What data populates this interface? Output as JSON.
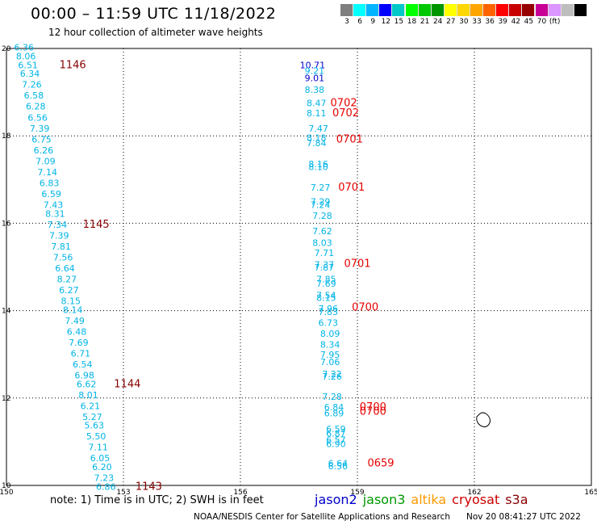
{
  "header": {
    "title": "00:00 – 11:59 UTC 11/18/2022",
    "subtitle": "12 hour collection of altimeter wave heights"
  },
  "colorbar": {
    "colors": [
      "#7f7f7f",
      "#00ffff",
      "#00b4ff",
      "#0000ff",
      "#00c8c8",
      "#00ff00",
      "#00c800",
      "#009600",
      "#ffff00",
      "#ffd700",
      "#ffa500",
      "#ff6400",
      "#ff0000",
      "#c80000",
      "#960000",
      "#c80096",
      "#dc96ff",
      "#bebebe",
      "#000000"
    ],
    "labels": [
      "3",
      "6",
      "9",
      "12",
      "15",
      "18",
      "21",
      "24",
      "27",
      "30",
      "33",
      "36",
      "39",
      "42",
      "45",
      "70",
      "(ft)"
    ]
  },
  "footer": {
    "note": "note: 1) Time is in UTC; 2) SWH is in feet",
    "credit": "NOAA/NESDIS Center for Satellite Applications and Research",
    "timestamp": "Nov 20 08:41:27 UTC 2022",
    "satellites": [
      {
        "name": "jason2",
        "color": "#0000cc"
      },
      {
        "name": "jason3",
        "color": "#009900"
      },
      {
        "name": "altika",
        "color": "#ff9900"
      },
      {
        "name": "cryosat",
        "color": "#cc0000"
      },
      {
        "name": "s3a",
        "color": "#880000"
      }
    ]
  },
  "chart_data": {
    "type": "scatter",
    "xlim": [
      150,
      165
    ],
    "ylim": [
      10,
      20
    ],
    "x_ticks": [
      150,
      153,
      156,
      159,
      162,
      165
    ],
    "y_ticks": [
      10,
      12,
      14,
      16,
      18,
      20
    ],
    "y_tick_labels": [
      "10",
      "12",
      "14",
      "16",
      "18",
      "20"
    ],
    "grid": true,
    "tracks": [
      {
        "points": [
          {
            "lon": 150.45,
            "lat": 19.95,
            "v": "6.36",
            "c": "#00b4e6"
          },
          {
            "lon": 150.5,
            "lat": 19.75,
            "v": "8.06",
            "c": "#00b4e6"
          },
          {
            "lon": 150.55,
            "lat": 19.55,
            "v": "6.51",
            "c": "#00b4e6"
          },
          {
            "lon": 150.6,
            "lat": 19.35,
            "v": "6.34",
            "c": "#00b4e6"
          },
          {
            "lon": 150.65,
            "lat": 19.1,
            "v": "7.26",
            "c": "#00b4e6"
          },
          {
            "lon": 150.7,
            "lat": 18.85,
            "v": "6.58",
            "c": "#00b4e6"
          },
          {
            "lon": 150.75,
            "lat": 18.6,
            "v": "6.28",
            "c": "#00b4e6"
          },
          {
            "lon": 150.8,
            "lat": 18.35,
            "v": "6.56",
            "c": "#00b4e6"
          },
          {
            "lon": 150.85,
            "lat": 18.1,
            "v": "7.39",
            "c": "#00b4e6"
          },
          {
            "lon": 150.9,
            "lat": 17.85,
            "v": "6.75",
            "c": "#00b4e6"
          },
          {
            "lon": 150.95,
            "lat": 17.6,
            "v": "6.26",
            "c": "#00b4e6"
          },
          {
            "lon": 151.0,
            "lat": 17.35,
            "v": "7.09",
            "c": "#00b4e6"
          },
          {
            "lon": 151.05,
            "lat": 17.1,
            "v": "7.14",
            "c": "#00b4e6"
          },
          {
            "lon": 151.1,
            "lat": 16.85,
            "v": "6.83",
            "c": "#00b4e6"
          },
          {
            "lon": 151.15,
            "lat": 16.6,
            "v": "6.59",
            "c": "#00b4e6"
          },
          {
            "lon": 151.2,
            "lat": 16.35,
            "v": "7.43",
            "c": "#00b4e6"
          },
          {
            "lon": 151.25,
            "lat": 16.15,
            "v": "8.31",
            "c": "#00b4e6"
          },
          {
            "lon": 151.3,
            "lat": 15.9,
            "v": "7.34",
            "c": "#00b4e6"
          },
          {
            "lon": 151.35,
            "lat": 15.65,
            "v": "7.39",
            "c": "#00b4e6"
          },
          {
            "lon": 151.4,
            "lat": 15.4,
            "v": "7.81",
            "c": "#00b4e6"
          },
          {
            "lon": 151.45,
            "lat": 15.15,
            "v": "7.56",
            "c": "#00b4e6"
          },
          {
            "lon": 151.5,
            "lat": 14.9,
            "v": "6.64",
            "c": "#00b4e6"
          },
          {
            "lon": 151.55,
            "lat": 14.65,
            "v": "8.27",
            "c": "#00b4e6"
          },
          {
            "lon": 151.6,
            "lat": 14.4,
            "v": "6.27",
            "c": "#00b4e6"
          },
          {
            "lon": 151.65,
            "lat": 14.15,
            "v": "8.15",
            "c": "#00b4e6"
          },
          {
            "lon": 151.7,
            "lat": 13.95,
            "v": "8.14",
            "c": "#00b4e6"
          },
          {
            "lon": 151.75,
            "lat": 13.7,
            "v": "7.49",
            "c": "#00b4e6"
          },
          {
            "lon": 151.8,
            "lat": 13.45,
            "v": "6.48",
            "c": "#00b4e6"
          },
          {
            "lon": 151.85,
            "lat": 13.2,
            "v": "7.69",
            "c": "#00b4e6"
          },
          {
            "lon": 151.9,
            "lat": 12.95,
            "v": "6.71",
            "c": "#00b4e6"
          },
          {
            "lon": 151.95,
            "lat": 12.7,
            "v": "6.54",
            "c": "#00b4e6"
          },
          {
            "lon": 152.0,
            "lat": 12.45,
            "v": "6.98",
            "c": "#00b4e6"
          },
          {
            "lon": 152.05,
            "lat": 12.25,
            "v": "6.62",
            "c": "#00b4e6"
          },
          {
            "lon": 152.1,
            "lat": 12.0,
            "v": "8.01",
            "c": "#00b4e6"
          },
          {
            "lon": 152.15,
            "lat": 11.75,
            "v": "6.21",
            "c": "#00b4e6"
          },
          {
            "lon": 152.2,
            "lat": 11.5,
            "v": "5.27",
            "c": "#00b4e6"
          },
          {
            "lon": 152.25,
            "lat": 11.3,
            "v": "5.63",
            "c": "#00b4e6"
          },
          {
            "lon": 152.3,
            "lat": 11.05,
            "v": "5.50",
            "c": "#00b4e6"
          },
          {
            "lon": 152.35,
            "lat": 10.8,
            "v": "7.11",
            "c": "#00b4e6"
          },
          {
            "lon": 152.4,
            "lat": 10.55,
            "v": "6.05",
            "c": "#00b4e6"
          },
          {
            "lon": 152.45,
            "lat": 10.35,
            "v": "6.20",
            "c": "#00b4e6"
          },
          {
            "lon": 152.5,
            "lat": 10.1,
            "v": "7.23",
            "c": "#00b4e6"
          },
          {
            "lon": 152.55,
            "lat": 9.9,
            "v": "6.86",
            "c": "#00b4e6"
          }
        ],
        "times": [
          {
            "lon": 151.7,
            "lat": 19.55,
            "t": "1146",
            "c": "#880000"
          },
          {
            "lon": 152.3,
            "lat": 15.9,
            "t": "1145",
            "c": "#880000"
          },
          {
            "lon": 153.1,
            "lat": 12.25,
            "t": "1144",
            "c": "#880000"
          },
          {
            "lon": 153.65,
            "lat": 9.9,
            "t": "1143",
            "c": "#880000"
          }
        ]
      },
      {
        "points": [
          {
            "lon": 157.85,
            "lat": 19.55,
            "v": "10.71",
            "c": "#0000cc"
          },
          {
            "lon": 157.9,
            "lat": 19.42,
            "v": "9.21",
            "c": "#00b4e6"
          },
          {
            "lon": 157.9,
            "lat": 19.25,
            "v": "9.01",
            "c": "#0000cc"
          },
          {
            "lon": 157.9,
            "lat": 18.98,
            "v": "8.38",
            "c": "#00b4e6"
          },
          {
            "lon": 157.95,
            "lat": 18.68,
            "v": "8.47",
            "c": "#00b4e6"
          },
          {
            "lon": 157.95,
            "lat": 18.45,
            "v": "8.11",
            "c": "#00b4e6"
          },
          {
            "lon": 158.0,
            "lat": 18.1,
            "v": "7.47",
            "c": "#00b4e6"
          },
          {
            "lon": 157.95,
            "lat": 17.88,
            "v": "8.18",
            "c": "#00b4e6"
          },
          {
            "lon": 157.95,
            "lat": 17.76,
            "v": "7.84",
            "c": "#00b4e6"
          },
          {
            "lon": 158.0,
            "lat": 17.28,
            "v": "8.16",
            "c": "#00b4e6"
          },
          {
            "lon": 158.0,
            "lat": 17.22,
            "v": "8.10",
            "c": "#00b4e6"
          },
          {
            "lon": 158.05,
            "lat": 16.75,
            "v": "7.27",
            "c": "#00b4e6"
          },
          {
            "lon": 158.05,
            "lat": 16.42,
            "v": "7.29",
            "c": "#00b4e6"
          },
          {
            "lon": 158.05,
            "lat": 16.35,
            "v": "7.24",
            "c": "#00b4e6"
          },
          {
            "lon": 158.1,
            "lat": 16.1,
            "v": "7.28",
            "c": "#00b4e6"
          },
          {
            "lon": 158.1,
            "lat": 15.75,
            "v": "7.62",
            "c": "#00b4e6"
          },
          {
            "lon": 158.1,
            "lat": 15.48,
            "v": "8.03",
            "c": "#00b4e6"
          },
          {
            "lon": 158.15,
            "lat": 15.25,
            "v": "7.71",
            "c": "#00b4e6"
          },
          {
            "lon": 158.15,
            "lat": 14.98,
            "v": "7.37",
            "c": "#00b4e6"
          },
          {
            "lon": 158.15,
            "lat": 14.92,
            "v": "7.87",
            "c": "#00b4e6"
          },
          {
            "lon": 158.2,
            "lat": 14.65,
            "v": "7.85",
            "c": "#00b4e6"
          },
          {
            "lon": 158.2,
            "lat": 14.55,
            "v": "7.69",
            "c": "#00b4e6"
          },
          {
            "lon": 158.2,
            "lat": 14.28,
            "v": "7.54",
            "c": "#00b4e6"
          },
          {
            "lon": 158.2,
            "lat": 14.22,
            "v": "8.15",
            "c": "#00b4e6"
          },
          {
            "lon": 158.25,
            "lat": 13.97,
            "v": "7.96",
            "c": "#00b4e6"
          },
          {
            "lon": 158.25,
            "lat": 13.9,
            "v": "7.83",
            "c": "#00b4e6"
          },
          {
            "lon": 158.25,
            "lat": 13.65,
            "v": "6.73",
            "c": "#00b4e6"
          },
          {
            "lon": 158.3,
            "lat": 13.4,
            "v": "8.09",
            "c": "#00b4e6"
          },
          {
            "lon": 158.3,
            "lat": 13.15,
            "v": "8.34",
            "c": "#00b4e6"
          },
          {
            "lon": 158.3,
            "lat": 12.92,
            "v": "7.95",
            "c": "#00b4e6"
          },
          {
            "lon": 158.3,
            "lat": 12.75,
            "v": "7.06",
            "c": "#00b4e6"
          },
          {
            "lon": 158.35,
            "lat": 12.48,
            "v": "7.22",
            "c": "#00b4e6"
          },
          {
            "lon": 158.35,
            "lat": 12.42,
            "v": "7.26",
            "c": "#00b4e6"
          },
          {
            "lon": 158.35,
            "lat": 11.96,
            "v": "7.28",
            "c": "#00b4e6"
          },
          {
            "lon": 158.4,
            "lat": 11.72,
            "v": "6.84",
            "c": "#00b4e6"
          },
          {
            "lon": 158.4,
            "lat": 11.58,
            "v": "6.89",
            "c": "#00b4e6"
          },
          {
            "lon": 158.45,
            "lat": 11.22,
            "v": "6.59",
            "c": "#00b4e6"
          },
          {
            "lon": 158.45,
            "lat": 11.12,
            "v": "6.87",
            "c": "#00b4e6"
          },
          {
            "lon": 158.45,
            "lat": 10.97,
            "v": "6.57",
            "c": "#00b4e6"
          },
          {
            "lon": 158.45,
            "lat": 10.88,
            "v": "6.90",
            "c": "#00b4e6"
          },
          {
            "lon": 158.5,
            "lat": 10.43,
            "v": "6.64",
            "c": "#00b4e6"
          },
          {
            "lon": 158.5,
            "lat": 10.37,
            "v": "6.56",
            "c": "#00b4e6"
          }
        ],
        "times": [
          {
            "lon": 158.65,
            "lat": 18.68,
            "t": "0702",
            "c": "#e60000"
          },
          {
            "lon": 158.7,
            "lat": 18.45,
            "t": "0702",
            "c": "#e60000"
          },
          {
            "lon": 158.8,
            "lat": 17.85,
            "t": "0701",
            "c": "#e60000"
          },
          {
            "lon": 158.85,
            "lat": 16.75,
            "t": "0701",
            "c": "#e60000"
          },
          {
            "lon": 159.0,
            "lat": 15.0,
            "t": "0701",
            "c": "#e60000"
          },
          {
            "lon": 159.2,
            "lat": 14.0,
            "t": "0700",
            "c": "#e60000"
          },
          {
            "lon": 159.4,
            "lat": 11.72,
            "t": "0700",
            "c": "#e60000"
          },
          {
            "lon": 159.4,
            "lat": 11.62,
            "t": "0700",
            "c": "#e60000"
          },
          {
            "lon": 159.6,
            "lat": 10.43,
            "t": "0659",
            "c": "#e60000"
          }
        ]
      }
    ]
  }
}
